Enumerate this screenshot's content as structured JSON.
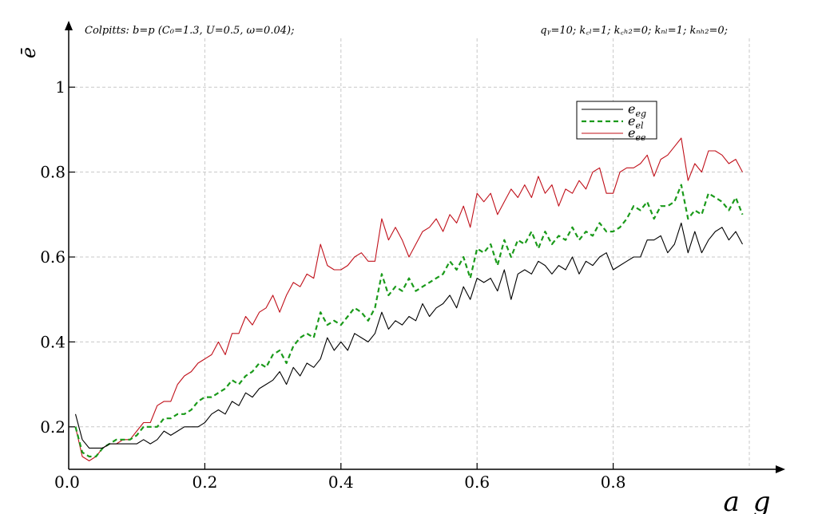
{
  "header": {
    "left": "Colpitts: b=p (C₀=1.3, U=0.5, ω=0.04);",
    "right": "qᵧ=10; k꜀ₗ=1; k꜀ₕ₂=0; kₙₗ=1; kₙₕ₂=0;"
  },
  "chart_data": {
    "type": "line",
    "xlabel": "a_g",
    "ylabel": "ē",
    "xlim": [
      0,
      1.0
    ],
    "ylim": [
      0.1,
      1.1
    ],
    "x_ticks": [
      0.2,
      0.4,
      0.6,
      0.8
    ],
    "x_tick_labels": [
      "0.2",
      "0.4",
      "0.6",
      "0.8"
    ],
    "y_ticks": [
      0.2,
      0.4,
      0.6,
      0.8,
      1.0
    ],
    "y_tick_labels": [
      "0.2",
      "0.4",
      "0.6",
      "0.8",
      "1"
    ],
    "origin_label": "0.0",
    "grid": true,
    "legend_position": "top-right",
    "series": [
      {
        "name": "e_eg",
        "color": "#000000",
        "dash": "solid",
        "x": [
          0.01,
          0.02,
          0.03,
          0.04,
          0.05,
          0.06,
          0.07,
          0.08,
          0.09,
          0.1,
          0.11,
          0.12,
          0.13,
          0.14,
          0.15,
          0.16,
          0.17,
          0.18,
          0.19,
          0.2,
          0.21,
          0.22,
          0.23,
          0.24,
          0.25,
          0.26,
          0.27,
          0.28,
          0.29,
          0.3,
          0.31,
          0.32,
          0.33,
          0.34,
          0.35,
          0.36,
          0.37,
          0.38,
          0.39,
          0.4,
          0.41,
          0.42,
          0.43,
          0.44,
          0.45,
          0.46,
          0.47,
          0.48,
          0.49,
          0.5,
          0.51,
          0.52,
          0.53,
          0.54,
          0.55,
          0.56,
          0.57,
          0.58,
          0.59,
          0.6,
          0.61,
          0.62,
          0.63,
          0.64,
          0.65,
          0.66,
          0.67,
          0.68,
          0.69,
          0.7,
          0.71,
          0.72,
          0.73,
          0.74,
          0.75,
          0.76,
          0.77,
          0.78,
          0.79,
          0.8,
          0.81,
          0.82,
          0.83,
          0.84,
          0.85,
          0.86,
          0.87,
          0.88,
          0.89,
          0.9,
          0.91,
          0.92,
          0.93,
          0.94,
          0.95,
          0.96,
          0.97,
          0.98,
          0.99
        ],
        "y": [
          0.23,
          0.17,
          0.15,
          0.15,
          0.15,
          0.16,
          0.16,
          0.16,
          0.16,
          0.16,
          0.17,
          0.16,
          0.17,
          0.19,
          0.18,
          0.19,
          0.2,
          0.2,
          0.2,
          0.21,
          0.23,
          0.24,
          0.23,
          0.26,
          0.25,
          0.28,
          0.27,
          0.29,
          0.3,
          0.31,
          0.33,
          0.3,
          0.34,
          0.32,
          0.35,
          0.34,
          0.36,
          0.41,
          0.38,
          0.4,
          0.38,
          0.42,
          0.41,
          0.4,
          0.42,
          0.47,
          0.43,
          0.45,
          0.44,
          0.46,
          0.45,
          0.49,
          0.46,
          0.48,
          0.49,
          0.51,
          0.48,
          0.53,
          0.5,
          0.55,
          0.54,
          0.55,
          0.52,
          0.57,
          0.5,
          0.56,
          0.57,
          0.56,
          0.59,
          0.58,
          0.56,
          0.58,
          0.57,
          0.6,
          0.56,
          0.59,
          0.58,
          0.6,
          0.61,
          0.57,
          0.58,
          0.59,
          0.6,
          0.6,
          0.64,
          0.64,
          0.65,
          0.61,
          0.63,
          0.68,
          0.61,
          0.66,
          0.61,
          0.64,
          0.66,
          0.67,
          0.64,
          0.66,
          0.63
        ]
      },
      {
        "name": "e_el",
        "color": "#1a9a1a",
        "dash": "dashed",
        "x": [
          0.01,
          0.02,
          0.03,
          0.04,
          0.05,
          0.06,
          0.07,
          0.08,
          0.09,
          0.1,
          0.11,
          0.12,
          0.13,
          0.14,
          0.15,
          0.16,
          0.17,
          0.18,
          0.19,
          0.2,
          0.21,
          0.22,
          0.23,
          0.24,
          0.25,
          0.26,
          0.27,
          0.28,
          0.29,
          0.3,
          0.31,
          0.32,
          0.33,
          0.34,
          0.35,
          0.36,
          0.37,
          0.38,
          0.39,
          0.4,
          0.41,
          0.42,
          0.43,
          0.44,
          0.45,
          0.46,
          0.47,
          0.48,
          0.49,
          0.5,
          0.51,
          0.52,
          0.53,
          0.54,
          0.55,
          0.56,
          0.57,
          0.58,
          0.59,
          0.6,
          0.61,
          0.62,
          0.63,
          0.64,
          0.65,
          0.66,
          0.67,
          0.68,
          0.69,
          0.7,
          0.71,
          0.72,
          0.73,
          0.74,
          0.75,
          0.76,
          0.77,
          0.78,
          0.79,
          0.8,
          0.81,
          0.82,
          0.83,
          0.84,
          0.85,
          0.86,
          0.87,
          0.88,
          0.89,
          0.9,
          0.91,
          0.92,
          0.93,
          0.94,
          0.95,
          0.96,
          0.97,
          0.98,
          0.99
        ],
        "y": [
          0.2,
          0.14,
          0.13,
          0.13,
          0.15,
          0.16,
          0.17,
          0.17,
          0.17,
          0.18,
          0.2,
          0.2,
          0.2,
          0.22,
          0.22,
          0.23,
          0.23,
          0.24,
          0.26,
          0.27,
          0.27,
          0.28,
          0.29,
          0.31,
          0.3,
          0.32,
          0.33,
          0.35,
          0.34,
          0.37,
          0.38,
          0.35,
          0.39,
          0.41,
          0.42,
          0.41,
          0.47,
          0.44,
          0.45,
          0.44,
          0.46,
          0.48,
          0.47,
          0.45,
          0.48,
          0.56,
          0.51,
          0.53,
          0.52,
          0.55,
          0.52,
          0.53,
          0.54,
          0.55,
          0.56,
          0.59,
          0.57,
          0.6,
          0.55,
          0.62,
          0.61,
          0.63,
          0.58,
          0.64,
          0.6,
          0.64,
          0.63,
          0.66,
          0.62,
          0.66,
          0.63,
          0.65,
          0.64,
          0.67,
          0.64,
          0.66,
          0.65,
          0.68,
          0.66,
          0.66,
          0.67,
          0.69,
          0.72,
          0.71,
          0.73,
          0.69,
          0.72,
          0.72,
          0.73,
          0.77,
          0.69,
          0.71,
          0.7,
          0.75,
          0.74,
          0.73,
          0.71,
          0.74,
          0.7
        ]
      },
      {
        "name": "e_ee",
        "color": "#c0101a",
        "dash": "solid",
        "x": [
          0.01,
          0.02,
          0.03,
          0.04,
          0.05,
          0.06,
          0.07,
          0.08,
          0.09,
          0.1,
          0.11,
          0.12,
          0.13,
          0.14,
          0.15,
          0.16,
          0.17,
          0.18,
          0.19,
          0.2,
          0.21,
          0.22,
          0.23,
          0.24,
          0.25,
          0.26,
          0.27,
          0.28,
          0.29,
          0.3,
          0.31,
          0.32,
          0.33,
          0.34,
          0.35,
          0.36,
          0.37,
          0.38,
          0.39,
          0.4,
          0.41,
          0.42,
          0.43,
          0.44,
          0.45,
          0.46,
          0.47,
          0.48,
          0.49,
          0.5,
          0.51,
          0.52,
          0.53,
          0.54,
          0.55,
          0.56,
          0.57,
          0.58,
          0.59,
          0.6,
          0.61,
          0.62,
          0.63,
          0.64,
          0.65,
          0.66,
          0.67,
          0.68,
          0.69,
          0.7,
          0.71,
          0.72,
          0.73,
          0.74,
          0.75,
          0.76,
          0.77,
          0.78,
          0.79,
          0.8,
          0.81,
          0.82,
          0.83,
          0.84,
          0.85,
          0.86,
          0.87,
          0.88,
          0.89,
          0.9,
          0.91,
          0.92,
          0.93,
          0.94,
          0.95,
          0.96,
          0.97,
          0.98,
          0.99
        ],
        "y": [
          0.2,
          0.13,
          0.12,
          0.13,
          0.15,
          0.16,
          0.16,
          0.17,
          0.17,
          0.19,
          0.21,
          0.21,
          0.25,
          0.26,
          0.26,
          0.3,
          0.32,
          0.33,
          0.35,
          0.36,
          0.37,
          0.4,
          0.37,
          0.42,
          0.42,
          0.46,
          0.44,
          0.47,
          0.48,
          0.51,
          0.47,
          0.51,
          0.54,
          0.53,
          0.56,
          0.55,
          0.63,
          0.58,
          0.57,
          0.57,
          0.58,
          0.6,
          0.61,
          0.59,
          0.59,
          0.69,
          0.64,
          0.67,
          0.64,
          0.6,
          0.63,
          0.66,
          0.67,
          0.69,
          0.66,
          0.7,
          0.68,
          0.72,
          0.67,
          0.75,
          0.73,
          0.75,
          0.7,
          0.73,
          0.76,
          0.74,
          0.77,
          0.74,
          0.79,
          0.75,
          0.77,
          0.72,
          0.76,
          0.75,
          0.78,
          0.76,
          0.8,
          0.81,
          0.75,
          0.75,
          0.8,
          0.81,
          0.81,
          0.82,
          0.84,
          0.79,
          0.83,
          0.84,
          0.86,
          0.88,
          0.78,
          0.82,
          0.8,
          0.85,
          0.85,
          0.84,
          0.82,
          0.83,
          0.8
        ]
      }
    ]
  }
}
